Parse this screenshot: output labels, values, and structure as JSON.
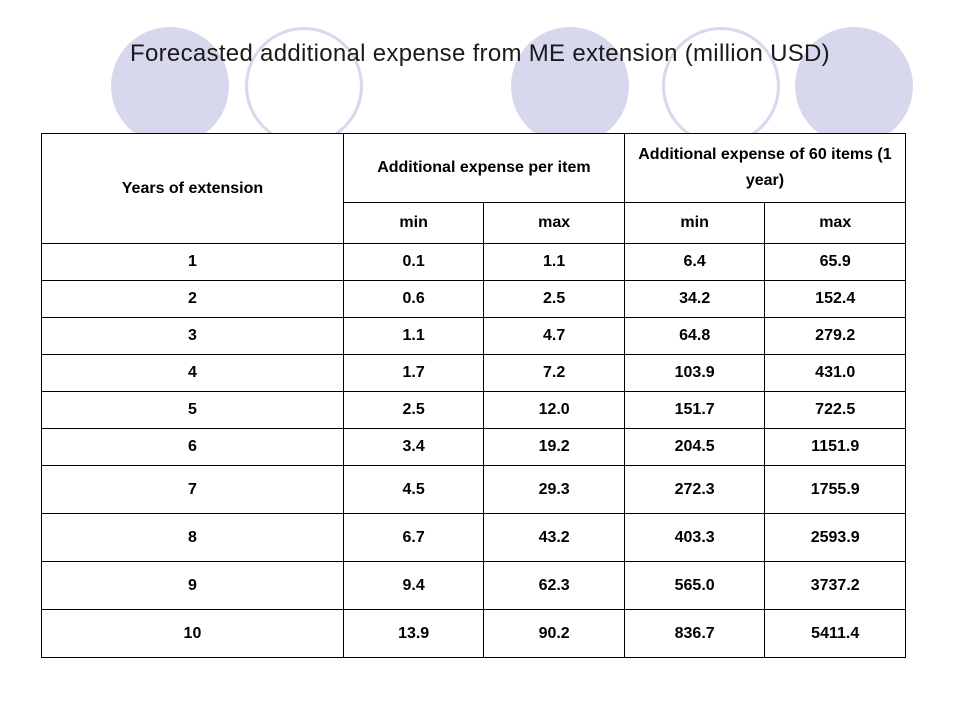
{
  "title": "Forecasted additional expense from ME extension (million USD)",
  "colors": {
    "circle_fill": "#d7d7ee",
    "circle_outline": "#d7d7ee",
    "text": "#000000"
  },
  "table": {
    "header_years": "Years of extension",
    "header_group_1": "Additional expense per item",
    "header_group_2": "Additional expense  of 60 items (1 year)",
    "sub_min_1": "min",
    "sub_max_1": "max",
    "sub_min_2": "min",
    "sub_max_2": "max",
    "rows": [
      [
        "1",
        "0.1",
        "1.1",
        "6.4",
        "65.9"
      ],
      [
        "2",
        "0.6",
        "2.5",
        "34.2",
        "152.4"
      ],
      [
        "3",
        "1.1",
        "4.7",
        "64.8",
        "279.2"
      ],
      [
        "4",
        "1.7",
        "7.2",
        "103.9",
        "431.0"
      ],
      [
        "5",
        "2.5",
        "12.0",
        "151.7",
        "722.5"
      ],
      [
        "6",
        "3.4",
        "19.2",
        "204.5",
        "1151.9"
      ],
      [
        "7",
        "4.5",
        "29.3",
        "272.3",
        "1755.9"
      ],
      [
        "8",
        "6.7",
        "43.2",
        "403.3",
        "2593.9"
      ],
      [
        "9",
        "9.4",
        "62.3",
        "565.0",
        "3737.2"
      ],
      [
        "10",
        "13.9",
        "90.2",
        "836.7",
        "5411.4"
      ]
    ]
  }
}
